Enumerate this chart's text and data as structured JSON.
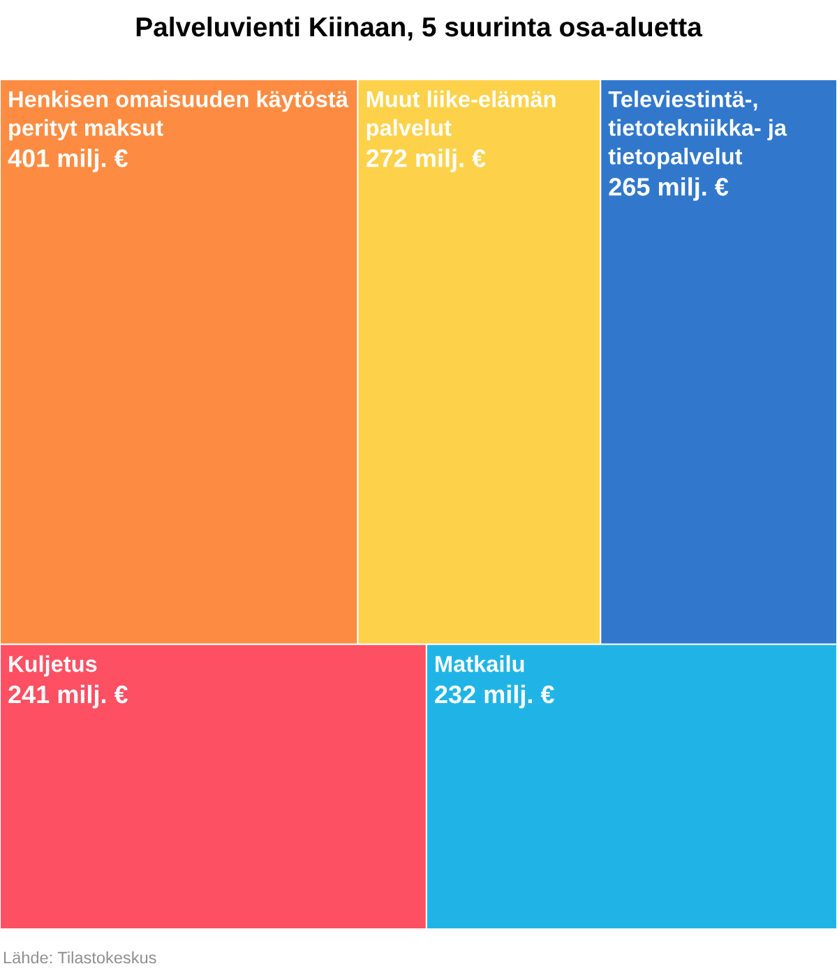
{
  "chart_data": {
    "type": "other",
    "title": "Palveluvienti Kiinaan, 5 suurinta osa-aluetta",
    "categories": [
      "Henkisen omaisuuden käytöstä perityt maksut",
      "Muut liike-elämän palvelut",
      "Televiestintä-, tietotekniikka- ja tietopalvelut",
      "Kuljetus",
      "Matkailu"
    ],
    "values": [
      401,
      272,
      265,
      241,
      232
    ],
    "value_labels": [
      "401 milj. €",
      "272 milj. €",
      "265 milj. €",
      "241 milj. €",
      "232 milj. €"
    ],
    "colors": [
      "#fd8c42",
      "#fdd24a",
      "#3178cc",
      "#fd5063",
      "#20b4e6"
    ],
    "annotations": [
      "Lähde: Tilastokeskus"
    ]
  }
}
